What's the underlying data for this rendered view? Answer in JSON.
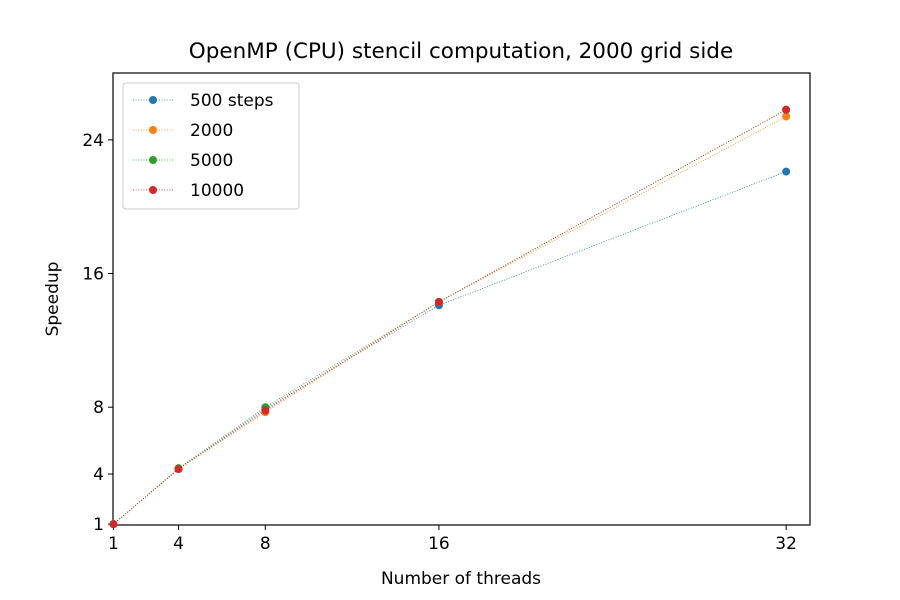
{
  "chart_data": {
    "type": "line",
    "title": "OpenMP (CPU) stencil computation, 2000 grid side",
    "xlabel": "Number of threads",
    "ylabel": "Speedup",
    "x": [
      1,
      4,
      8,
      16,
      32
    ],
    "xticks": [
      "1",
      "4",
      "8",
      "16",
      "32"
    ],
    "yticks": [
      "1",
      "4",
      "8",
      "16",
      "24"
    ],
    "xlim": [
      0.98,
      33.1
    ],
    "ylim": [
      0.95,
      28.0
    ],
    "grid": false,
    "legend_position": "top-left",
    "series": [
      {
        "name": "500 steps",
        "color": "#1f77b4",
        "values": [
          1.0,
          4.3,
          7.9,
          14.1,
          22.1
        ]
      },
      {
        "name": "2000",
        "color": "#ff7f0e",
        "values": [
          1.0,
          4.3,
          7.7,
          14.3,
          25.4
        ]
      },
      {
        "name": "5000",
        "color": "#2ca02c",
        "values": [
          1.0,
          4.35,
          8.0,
          14.3,
          25.8
        ]
      },
      {
        "name": "10000",
        "color": "#d62728",
        "values": [
          1.0,
          4.3,
          7.8,
          14.3,
          25.8
        ]
      }
    ]
  }
}
